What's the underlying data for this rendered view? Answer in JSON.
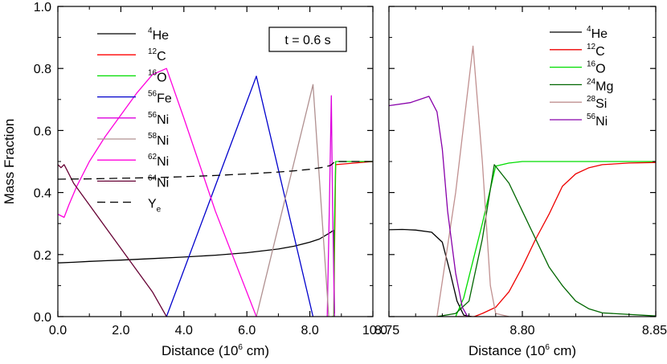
{
  "chart_data": [
    {
      "type": "line",
      "panel": "left",
      "xlabel": "Distance (10^6 cm)",
      "xlabel_parts": {
        "pre": "Distance (10",
        "sup": "6",
        "post": " cm)"
      },
      "ylabel": "Mass Fraction",
      "xlim": [
        0,
        10
      ],
      "ylim": [
        0,
        1
      ],
      "xticks": [
        {
          "v": 0,
          "label": "0.0"
        },
        {
          "v": 2,
          "label": "2.0"
        },
        {
          "v": 4,
          "label": "4.0"
        },
        {
          "v": 6,
          "label": "6.0"
        },
        {
          "v": 8,
          "label": "8.0"
        },
        {
          "v": 10,
          "label": "10.0"
        }
      ],
      "yticks": [
        {
          "v": 0,
          "label": "0.0"
        },
        {
          "v": 0.2,
          "label": "0.2"
        },
        {
          "v": 0.4,
          "label": "0.4"
        },
        {
          "v": 0.6,
          "label": "0.6"
        },
        {
          "v": 0.8,
          "label": "0.8"
        },
        {
          "v": 1.0,
          "label": "1.0"
        }
      ],
      "annotation": "t = 0.6 s",
      "legend_position": "top-left",
      "series": [
        {
          "sup": "4",
          "sym": "He",
          "sub": "",
          "color": "#000000",
          "dash": "",
          "x": [
            0,
            0.5,
            1,
            2,
            3,
            4,
            5,
            6,
            7,
            7.5,
            8,
            8.3,
            8.6,
            8.75,
            8.78
          ],
          "y": [
            0.173,
            0.175,
            0.178,
            0.182,
            0.187,
            0.192,
            0.198,
            0.206,
            0.218,
            0.227,
            0.24,
            0.25,
            0.268,
            0.278,
            0.01
          ]
        },
        {
          "sup": "12",
          "sym": "C",
          "sub": "",
          "color": "#ff0000",
          "dash": "",
          "x": [
            8.7,
            8.76,
            8.78,
            8.82,
            10
          ],
          "y": [
            0,
            0,
            0.2,
            0.49,
            0.5
          ]
        },
        {
          "sup": "16",
          "sym": "O",
          "sub": "",
          "color": "#00dd00",
          "dash": "",
          "x": [
            8.7,
            8.76,
            8.78,
            8.82,
            10
          ],
          "y": [
            0,
            0,
            0.3,
            0.5,
            0.5
          ]
        },
        {
          "sup": "56",
          "sym": "Fe",
          "sub": "",
          "color": "#0000cc",
          "dash": "",
          "x": [
            3.45,
            6.3,
            8.1
          ],
          "y": [
            0,
            0.775,
            0
          ]
        },
        {
          "sup": "56",
          "sym": "Ni",
          "sub": "",
          "color": "#dd00dd",
          "dash": "",
          "x": [
            8.55,
            8.62,
            8.68,
            8.72,
            8.78
          ],
          "y": [
            0,
            0.36,
            0.712,
            0.36,
            0
          ]
        },
        {
          "sup": "58",
          "sym": "Ni",
          "sub": "",
          "color": "#b09090",
          "dash": "",
          "x": [
            6.3,
            8.1,
            8.6
          ],
          "y": [
            0,
            0.748,
            0
          ]
        },
        {
          "sup": "62",
          "sym": "Ni",
          "sub": "",
          "color": "#ff00dd",
          "dash": "",
          "x": [
            0,
            0.2,
            0.35,
            0.6,
            1,
            1.5,
            2,
            2.5,
            3,
            3.45,
            4,
            5,
            6.3
          ],
          "y": [
            0.33,
            0.32,
            0.36,
            0.42,
            0.5,
            0.58,
            0.65,
            0.72,
            0.78,
            0.8,
            0.64,
            0.34,
            0
          ]
        },
        {
          "sup": "64",
          "sym": "Ni",
          "sub": "",
          "color": "#660033",
          "dash": "",
          "x": [
            0,
            0.1,
            0.2,
            0.3,
            0.5,
            1,
            1.5,
            2,
            2.5,
            3,
            3.45
          ],
          "y": [
            0.49,
            0.48,
            0.49,
            0.47,
            0.43,
            0.36,
            0.29,
            0.22,
            0.15,
            0.08,
            0
          ]
        },
        {
          "sup": "",
          "sym": "Y",
          "sub": "e",
          "color": "#000000",
          "dash": "10,6",
          "x": [
            0,
            1,
            2,
            3,
            4,
            5,
            6,
            7,
            7.5,
            8,
            8.4,
            8.65,
            8.8,
            9,
            10
          ],
          "y": [
            0.443,
            0.444,
            0.446,
            0.448,
            0.451,
            0.455,
            0.46,
            0.466,
            0.47,
            0.475,
            0.481,
            0.487,
            0.5,
            0.5,
            0.5
          ]
        }
      ]
    },
    {
      "type": "line",
      "panel": "right",
      "xlabel": "Distance (10^6 cm)",
      "xlabel_parts": {
        "pre": "Distance (10",
        "sup": "6",
        "post": " cm)"
      },
      "ylabel": "",
      "xlim": [
        8.75,
        8.85
      ],
      "ylim": [
        0,
        1
      ],
      "xticks": [
        {
          "v": 8.75,
          "label": "8.75"
        },
        {
          "v": 8.8,
          "label": "8.80"
        },
        {
          "v": 8.85,
          "label": "8.85"
        }
      ],
      "yticks": [],
      "legend_position": "top-right",
      "series": [
        {
          "sup": "4",
          "sym": "He",
          "sub": "",
          "color": "#000000",
          "dash": "",
          "x": [
            8.75,
            8.755,
            8.76,
            8.766,
            8.77,
            8.773,
            8.7755,
            8.778,
            8.781
          ],
          "y": [
            0.28,
            0.281,
            0.279,
            0.272,
            0.24,
            0.14,
            0.05,
            0.005,
            0
          ]
        },
        {
          "sup": "12",
          "sym": "C",
          "sub": "",
          "color": "#ee0000",
          "dash": "",
          "x": [
            8.775,
            8.782,
            8.785,
            8.79,
            8.795,
            8.8,
            8.805,
            8.81,
            8.815,
            8.82,
            8.825,
            8.83,
            8.84,
            8.85
          ],
          "y": [
            0,
            0,
            0.01,
            0.03,
            0.08,
            0.16,
            0.25,
            0.33,
            0.42,
            0.46,
            0.48,
            0.49,
            0.495,
            0.497
          ]
        },
        {
          "sup": "16",
          "sym": "O",
          "sub": "",
          "color": "#00dd00",
          "dash": "",
          "x": [
            8.775,
            8.778,
            8.785,
            8.79,
            8.795,
            8.8,
            8.81,
            8.85
          ],
          "y": [
            0,
            0.06,
            0.3,
            0.485,
            0.495,
            0.5,
            0.5,
            0.5
          ]
        },
        {
          "sup": "24",
          "sym": "Mg",
          "sub": "",
          "color": "#006600",
          "dash": "",
          "x": [
            8.768,
            8.775,
            8.78,
            8.785,
            8.7895,
            8.795,
            8.8,
            8.805,
            8.81,
            8.815,
            8.82,
            8.825,
            8.83,
            8.85
          ],
          "y": [
            0,
            0.01,
            0.05,
            0.25,
            0.49,
            0.43,
            0.34,
            0.25,
            0.16,
            0.1,
            0.05,
            0.025,
            0.012,
            0.002
          ]
        },
        {
          "sup": "28",
          "sym": "Si",
          "sub": "",
          "color": "#c09090",
          "dash": "",
          "x": [
            8.768,
            8.775,
            8.7815,
            8.785,
            8.788,
            8.79,
            8.795
          ],
          "y": [
            0,
            0.4,
            0.872,
            0.5,
            0.1,
            0.01,
            0
          ]
        },
        {
          "sup": "56",
          "sym": "Ni",
          "sub": "",
          "color": "#8800aa",
          "dash": "",
          "x": [
            8.75,
            8.758,
            8.765,
            8.768,
            8.77,
            8.772,
            8.775,
            8.7775,
            8.7795
          ],
          "y": [
            0.68,
            0.69,
            0.71,
            0.66,
            0.54,
            0.34,
            0.14,
            0.03,
            0
          ]
        }
      ]
    }
  ]
}
